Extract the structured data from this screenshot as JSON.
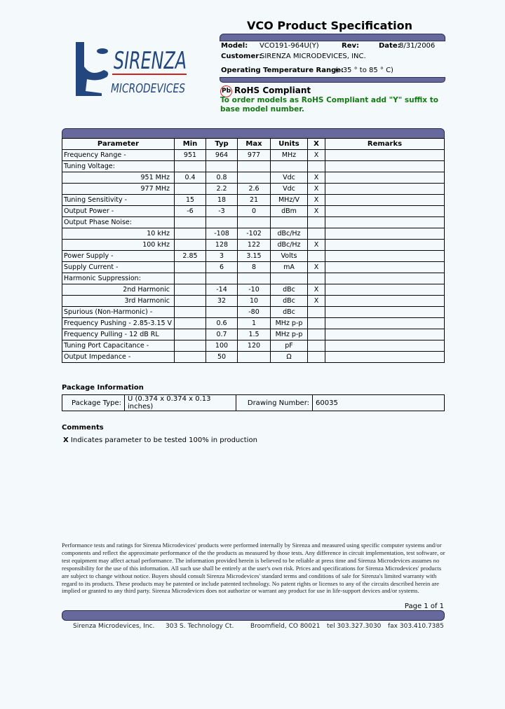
{
  "header": {
    "title": "VCO Product Specification",
    "model_label": "Model:",
    "model": "VCO191-964U(Y)",
    "rev_label": "Rev:",
    "date_label": "Date:",
    "date": "8/31/2006",
    "customer_label": "Customer:",
    "customer": "SIRENZA MICRODEVICES, INC.",
    "temp_label": "Operating Temperature Range:",
    "temp": "( -35 ° to 85 ° C)"
  },
  "logo": {
    "line1": "SIRENZA",
    "line2": "MICRODEVICES"
  },
  "rohs": {
    "badge": "Pb",
    "title": "RoHS Compliant",
    "note": "To order models as RoHS Compliant add \"Y\" suffix to base model number."
  },
  "colors": {
    "band": "#67689b",
    "rohs_note": "#137a13",
    "logo": "#24467e",
    "logo_rule": "#d42020"
  },
  "spec": {
    "headers": [
      "Parameter",
      "Min",
      "Typ",
      "Max",
      "Units",
      "X",
      "Remarks"
    ],
    "rows": [
      {
        "param": "Frequency Range -",
        "min": "951",
        "typ": "964",
        "max": "977",
        "units": "MHz",
        "x": "X",
        "remarks": ""
      },
      {
        "param": "Tuning Voltage:",
        "min": "",
        "typ": "",
        "max": "",
        "units": "",
        "x": "",
        "remarks": ""
      },
      {
        "param": "951 MHz",
        "indent": true,
        "min": "0.4",
        "typ": "0.8",
        "max": "",
        "units": "Vdc",
        "x": "X",
        "remarks": ""
      },
      {
        "param": "977 MHz",
        "indent": true,
        "min": "",
        "typ": "2.2",
        "max": "2.6",
        "units": "Vdc",
        "x": "X",
        "remarks": ""
      },
      {
        "param": "Tuning Sensitivity -",
        "min": "15",
        "typ": "18",
        "max": "21",
        "units": "MHz/V",
        "x": "X",
        "remarks": ""
      },
      {
        "param": "Output Power -",
        "min": "-6",
        "typ": "-3",
        "max": "0",
        "units": "dBm",
        "x": "X",
        "remarks": ""
      },
      {
        "param": "Output Phase Noise:",
        "min": "",
        "typ": "",
        "max": "",
        "units": "",
        "x": "",
        "remarks": ""
      },
      {
        "param": "10 kHz",
        "indent": true,
        "min": "",
        "typ": "-108",
        "max": "-102",
        "units": "dBc/Hz",
        "x": "",
        "remarks": ""
      },
      {
        "param": "100 kHz",
        "indent": true,
        "min": "",
        "typ": "128",
        "max": "122",
        "units": "dBc/Hz",
        "x": "X",
        "remarks": ""
      },
      {
        "param": "Power Supply -",
        "min": "2.85",
        "typ": "3",
        "max": "3.15",
        "units": "Volts",
        "x": "",
        "remarks": ""
      },
      {
        "param": "Supply Current -",
        "min": "",
        "typ": "6",
        "max": "8",
        "units": "mA",
        "x": "X",
        "remarks": ""
      },
      {
        "param": "Harmonic Suppression:",
        "min": "",
        "typ": "",
        "max": "",
        "units": "",
        "x": "",
        "remarks": ""
      },
      {
        "param": "2nd Harmonic",
        "indent": true,
        "min": "",
        "typ": "-14",
        "max": "-10",
        "units": "dBc",
        "x": "X",
        "remarks": ""
      },
      {
        "param": "3rd Harmonic",
        "indent": true,
        "min": "",
        "typ": "32",
        "max": "10",
        "units": "dBc",
        "x": "X",
        "remarks": ""
      },
      {
        "param": "Spurious (Non-Harmonic) -",
        "min": "",
        "typ": "",
        "max": "-80",
        "units": "dBc",
        "x": "",
        "remarks": ""
      },
      {
        "param": "Frequency Pushing - 2.85-3.15 V",
        "min": "",
        "typ": "0.6",
        "max": "1",
        "units": "MHz p-p",
        "x": "",
        "remarks": ""
      },
      {
        "param": "Frequency Pulling - 12 dB RL",
        "min": "",
        "typ": "0.7",
        "max": "1.5",
        "units": "MHz p-p",
        "x": "",
        "remarks": ""
      },
      {
        "param": "Tuning Port Capacitance -",
        "min": "",
        "typ": "100",
        "max": "120",
        "units": "pF",
        "x": "",
        "remarks": ""
      },
      {
        "param": "Output Impedance -",
        "min": "",
        "typ": "50",
        "max": "",
        "units": "Ω",
        "x": "",
        "remarks": ""
      }
    ]
  },
  "package": {
    "heading": "Package Information",
    "type_label": "Package Type:",
    "type": "U (0.374 x 0.374 x 0.13 inches)",
    "drawing_label": "Drawing Number:",
    "drawing": "60035"
  },
  "comments": {
    "heading": "Comments",
    "x": "X",
    "text": "Indicates parameter to be tested 100% in production"
  },
  "disclaimer": "Performance tests and ratings for Sirenza Microdevices' products were performed internally by Sirenza and measured using specific computer systems and/or components and reflect the approximate performance of the the products as measured by those tests. Any difference in circuit implementation, test software, or test equipment may affect actual performance. The information provided herein is believed to be reliable at press time and Sirenza Microdevices assumes no responsibility for the use of this information. All such use shall be entirely at the user's own risk. Prices and specifications for Sirenza Microdevices' products are subject to change without notice. Buyers should consult Sirenza Microdevices' standard terms and conditions of sale for Sirenza's limited warranty with regard to its products. These products may be patented or include patented technology. No patent rights or licenses to any of the circuits described herein are implied or granted to any third party. Sirenza Microdevices does not authorize or warrant any product for use in life-support devices and/or systems.",
  "page": "Page 1 of 1",
  "footer": {
    "company": "Sirenza Microdevices, Inc.",
    "address": "303 S. Technology Ct.",
    "city": "Broomfield, CO 80021",
    "tel": "tel 303.327.3030",
    "fax": "fax 303.410.7385"
  }
}
